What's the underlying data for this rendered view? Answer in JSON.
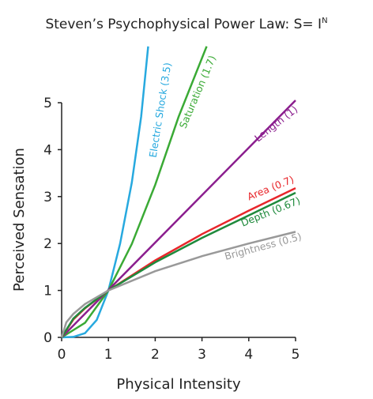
{
  "chart_data": {
    "type": "line",
    "title": "Steven’s Psychophysical Power Law: S= I",
    "title_superscript": "N",
    "x_label": "Physical Intensity",
    "y_label": "Perceived Sensation",
    "xlim": [
      0,
      5
    ],
    "ylim": [
      0,
      5
    ],
    "xticks": [
      0,
      1,
      2,
      3,
      4,
      5
    ],
    "yticks": [
      0,
      1,
      2,
      3,
      4,
      5
    ],
    "grid": false,
    "series": [
      {
        "name": "Electric Shock (3.5)",
        "color": "#27a9df",
        "x": [
          0,
          0.25,
          0.5,
          0.75,
          1,
          1.25,
          1.5,
          1.7,
          1.85
        ],
        "values": [
          0,
          0.01,
          0.09,
          0.37,
          1.0,
          2.0,
          3.3,
          4.7,
          6.2
        ]
      },
      {
        "name": "Saturation (1.7)",
        "color": "#3aaa35",
        "x": [
          0,
          0.5,
          1,
          1.5,
          2,
          2.5,
          3.1
        ],
        "values": [
          0,
          0.31,
          1.0,
          1.99,
          3.25,
          4.7,
          6.2
        ]
      },
      {
        "name": "Length (1)",
        "color": "#8b1e8e",
        "x": [
          0,
          5
        ],
        "values": [
          0,
          5.05
        ]
      },
      {
        "name": "Area (0.7)",
        "color": "#e8262b",
        "x": [
          0,
          0.25,
          0.5,
          1,
          2,
          3,
          4,
          5
        ],
        "values": [
          0,
          0.38,
          0.62,
          1.0,
          1.64,
          2.2,
          2.7,
          3.18
        ]
      },
      {
        "name": "Depth (0.67)",
        "color": "#1f8a3c",
        "x": [
          0,
          0.25,
          0.5,
          1,
          2,
          3,
          4,
          5
        ],
        "values": [
          0,
          0.4,
          0.63,
          1.0,
          1.6,
          2.12,
          2.6,
          3.08
        ]
      },
      {
        "name": "Brightness (0.5)",
        "color": "#999999",
        "x": [
          0,
          0.1,
          0.25,
          0.5,
          1,
          2,
          3,
          4,
          5
        ],
        "values": [
          0,
          0.32,
          0.5,
          0.71,
          1.0,
          1.41,
          1.73,
          2.0,
          2.25
        ]
      }
    ]
  }
}
